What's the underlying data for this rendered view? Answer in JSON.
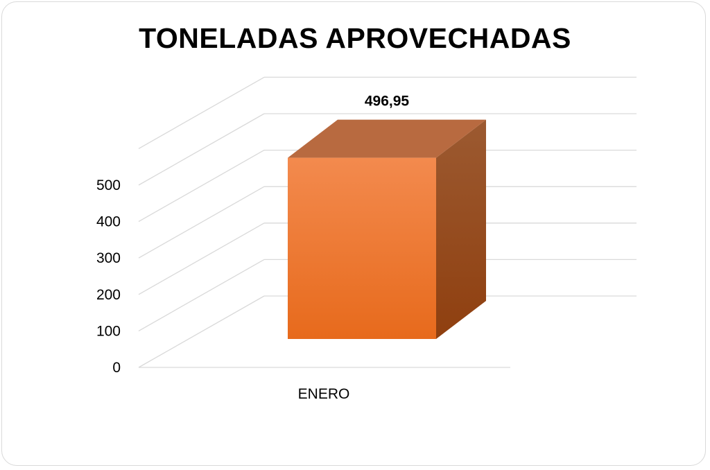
{
  "chart_data": {
    "type": "bar",
    "title": "TONELADAS APROVECHADAS",
    "categories": [
      "ENERO"
    ],
    "series": [
      {
        "values": [
          496.95
        ]
      }
    ],
    "data_labels": [
      "496,95"
    ],
    "y_ticks": [
      "0",
      "100",
      "200",
      "300",
      "400",
      "500"
    ],
    "ylim": [
      0,
      600
    ],
    "xlabel": "",
    "ylabel": "",
    "grid": true,
    "legend": "none",
    "style": "3d",
    "colors": {
      "front_top": "#f38a4e",
      "front_bottom": "#e76a1c",
      "top_face": "#b86a40",
      "side_top": "#9c5a31",
      "side_bottom": "#8f3f0f",
      "gridline": "#d9d9d9"
    }
  }
}
